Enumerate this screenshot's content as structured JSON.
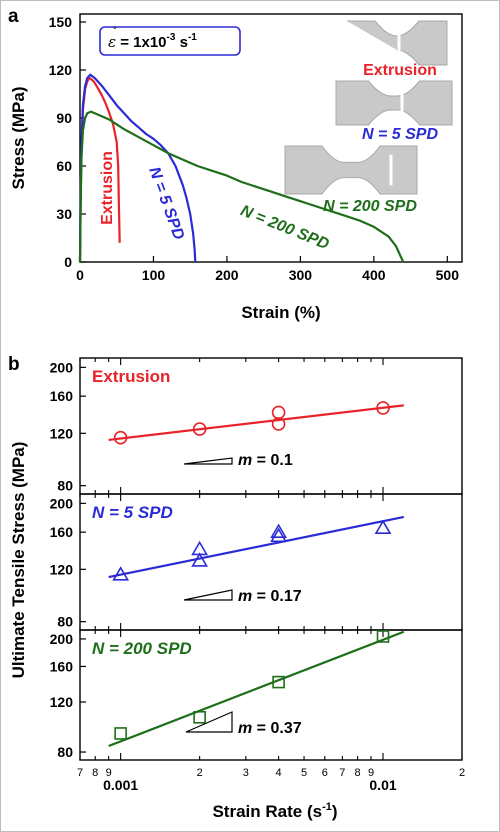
{
  "chart_data": [
    {
      "panel_label": "a",
      "type": "line",
      "xlabel": "Strain (%)",
      "ylabel": "Stress (MPa)",
      "xlim": [
        0,
        520
      ],
      "ylim": [
        0,
        155
      ],
      "xticks": [
        "0",
        "100",
        "200",
        "300",
        "400",
        "500"
      ],
      "yticks": [
        "0",
        "30",
        "60",
        "90",
        "120",
        "150"
      ],
      "strain_rate_box": {
        "prefix": "= 1x10",
        "exp1": "-3",
        "unit": " s",
        "exp2": "-1"
      },
      "series": [
        {
          "name": "Extrusion",
          "color": "#e8232a",
          "x": [
            0,
            1,
            2,
            4,
            7,
            10,
            13,
            16,
            20,
            25,
            30,
            35,
            40,
            45,
            50,
            52,
            53,
            54
          ],
          "y": [
            0,
            40,
            70,
            95,
            108,
            113,
            115,
            114,
            112,
            108,
            104,
            99,
            93,
            86,
            75,
            60,
            35,
            12
          ]
        },
        {
          "name": "N = 5 SPD",
          "color": "#2b2bd6",
          "x": [
            0,
            1,
            2,
            4,
            7,
            10,
            14,
            20,
            30,
            40,
            50,
            60,
            70,
            80,
            90,
            100,
            110,
            120,
            130,
            140,
            145,
            150,
            154,
            156,
            157
          ],
          "y": [
            0,
            45,
            75,
            98,
            110,
            115,
            117,
            115,
            110,
            104,
            98,
            93,
            88,
            84,
            80,
            77,
            73,
            68,
            60,
            48,
            40,
            30,
            18,
            8,
            0
          ]
        },
        {
          "name": "N = 200 SPD",
          "color": "#1e6e1a",
          "x": [
            0,
            1,
            2,
            4,
            7,
            10,
            15,
            20,
            30,
            40,
            50,
            60,
            80,
            100,
            120,
            140,
            160,
            180,
            200,
            220,
            240,
            260,
            280,
            300,
            320,
            340,
            360,
            380,
            400,
            420,
            430,
            436,
            440
          ],
          "y": [
            0,
            40,
            65,
            82,
            90,
            93,
            94,
            93,
            91,
            89,
            86,
            83,
            78,
            73,
            68,
            64,
            60,
            57,
            54,
            50,
            47,
            44,
            41,
            38,
            35,
            32,
            29,
            26,
            22,
            16,
            10,
            4,
            0
          ]
        }
      ],
      "annotations": [
        "Extrusion",
        "N = 5 SPD",
        "N = 200 SPD"
      ],
      "specimen_labels": [
        "Extrusion",
        "N = 5 SPD",
        "N = 200 SPD"
      ]
    },
    {
      "panel_label": "b",
      "type": "scatter",
      "xlabel": "Strain Rate",
      "xlabel_unit": "(s",
      "xlabel_exp": "-1",
      "ylabel": "Ultimate Tensile Stress (MPa)",
      "xscale": "log",
      "xlim": [
        0.0007,
        0.02
      ],
      "xticks_major": [
        "0.001",
        "0.01"
      ],
      "xticks_minor": [
        "7",
        "8",
        "9",
        "2",
        "3",
        "4",
        "5",
        "6",
        "7",
        "8",
        "9",
        "2"
      ],
      "yscale": "log",
      "panels": [
        {
          "name": "Extrusion",
          "color": "#e8232a",
          "marker": "circle",
          "ylim": [
            75,
            215
          ],
          "yticks": [
            "80",
            "120",
            "160",
            "200"
          ],
          "x": [
            0.001,
            0.002,
            0.004,
            0.004,
            0.01
          ],
          "y": [
            116,
            124,
            129,
            141,
            146
          ],
          "fit": {
            "x": [
              0.0009,
              0.012
            ],
            "y": [
              114,
              149
            ]
          },
          "slope_label": "= 0.1"
        },
        {
          "name": "N = 5 SPD",
          "color": "#2b2bd6",
          "marker": "triangle",
          "ylim": [
            75,
            215
          ],
          "yticks": [
            "80",
            "120",
            "160",
            "200"
          ],
          "x": [
            0.001,
            0.002,
            0.002,
            0.004,
            0.004,
            0.01
          ],
          "y": [
            115,
            128,
            140,
            155,
            160,
            165
          ],
          "fit": {
            "x": [
              0.0009,
              0.012
            ],
            "y": [
              113,
              180
            ]
          },
          "slope_label": "= 0.17"
        },
        {
          "name": "N = 200 SPD",
          "color": "#1e6e1a",
          "marker": "square",
          "ylim": [
            75,
            215
          ],
          "yticks": [
            "80",
            "120",
            "160",
            "200"
          ],
          "x": [
            0.001,
            0.002,
            0.004,
            0.01
          ],
          "y": [
            93,
            106,
            141,
            204
          ],
          "fit": {
            "x": [
              0.0009,
              0.012
            ],
            "y": [
              84,
              212
            ]
          },
          "slope_label": "= 0.37"
        }
      ]
    }
  ]
}
